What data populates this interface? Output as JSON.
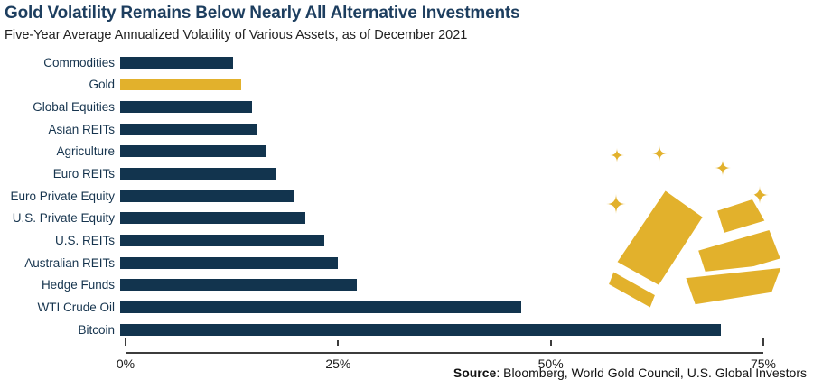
{
  "header": {
    "title": "Gold Volatility Remains Below Nearly All Alternative Investments",
    "subtitle": "Five-Year Average Annualized Volatility of Various Assets, as of December 2021"
  },
  "chart_data": {
    "type": "bar",
    "orientation": "horizontal",
    "title": "Gold Volatility Remains Below Nearly All Alternative Investments",
    "subtitle": "Five-Year Average Annualized Volatility of Various Assets, as of December 2021",
    "categories": [
      "Commodities",
      "Gold",
      "Global Equities",
      "Asian REITs",
      "Agriculture",
      "Euro REITs",
      "Euro Private Equity",
      "U.S. Private Equity",
      "U.S. REITs",
      "Australian REITs",
      "Hedge Funds",
      "WTI Crude Oil",
      "Bitcoin"
    ],
    "values": [
      13.3,
      14.2,
      15.5,
      16.1,
      17.1,
      18.4,
      20.4,
      21.8,
      24.0,
      25.6,
      27.8,
      47.2,
      70.6
    ],
    "unit": "%",
    "xlim": [
      0,
      75
    ],
    "x_tick_labels": [
      "0%",
      "25%",
      "50%",
      "75%"
    ],
    "x_tick_values": [
      0,
      25,
      50,
      75
    ],
    "grid": false,
    "legend": false,
    "highlight_category": "Gold",
    "bar_color": "#12344E",
    "highlight_color": "#E2B12C"
  },
  "footer": {
    "source_label": "Source",
    "source_rest": ": Bloomberg, World Gold Council, U.S. Global Investors"
  },
  "colors": {
    "title_navy": "#1D3E5F",
    "bar_navy": "#12344E",
    "gold": "#E2B12C",
    "axis_gray": "#3C3C3C"
  },
  "icons": {
    "gold_bars_illustration": "gold-bars-icon",
    "sparkles": "sparkle-icon"
  }
}
